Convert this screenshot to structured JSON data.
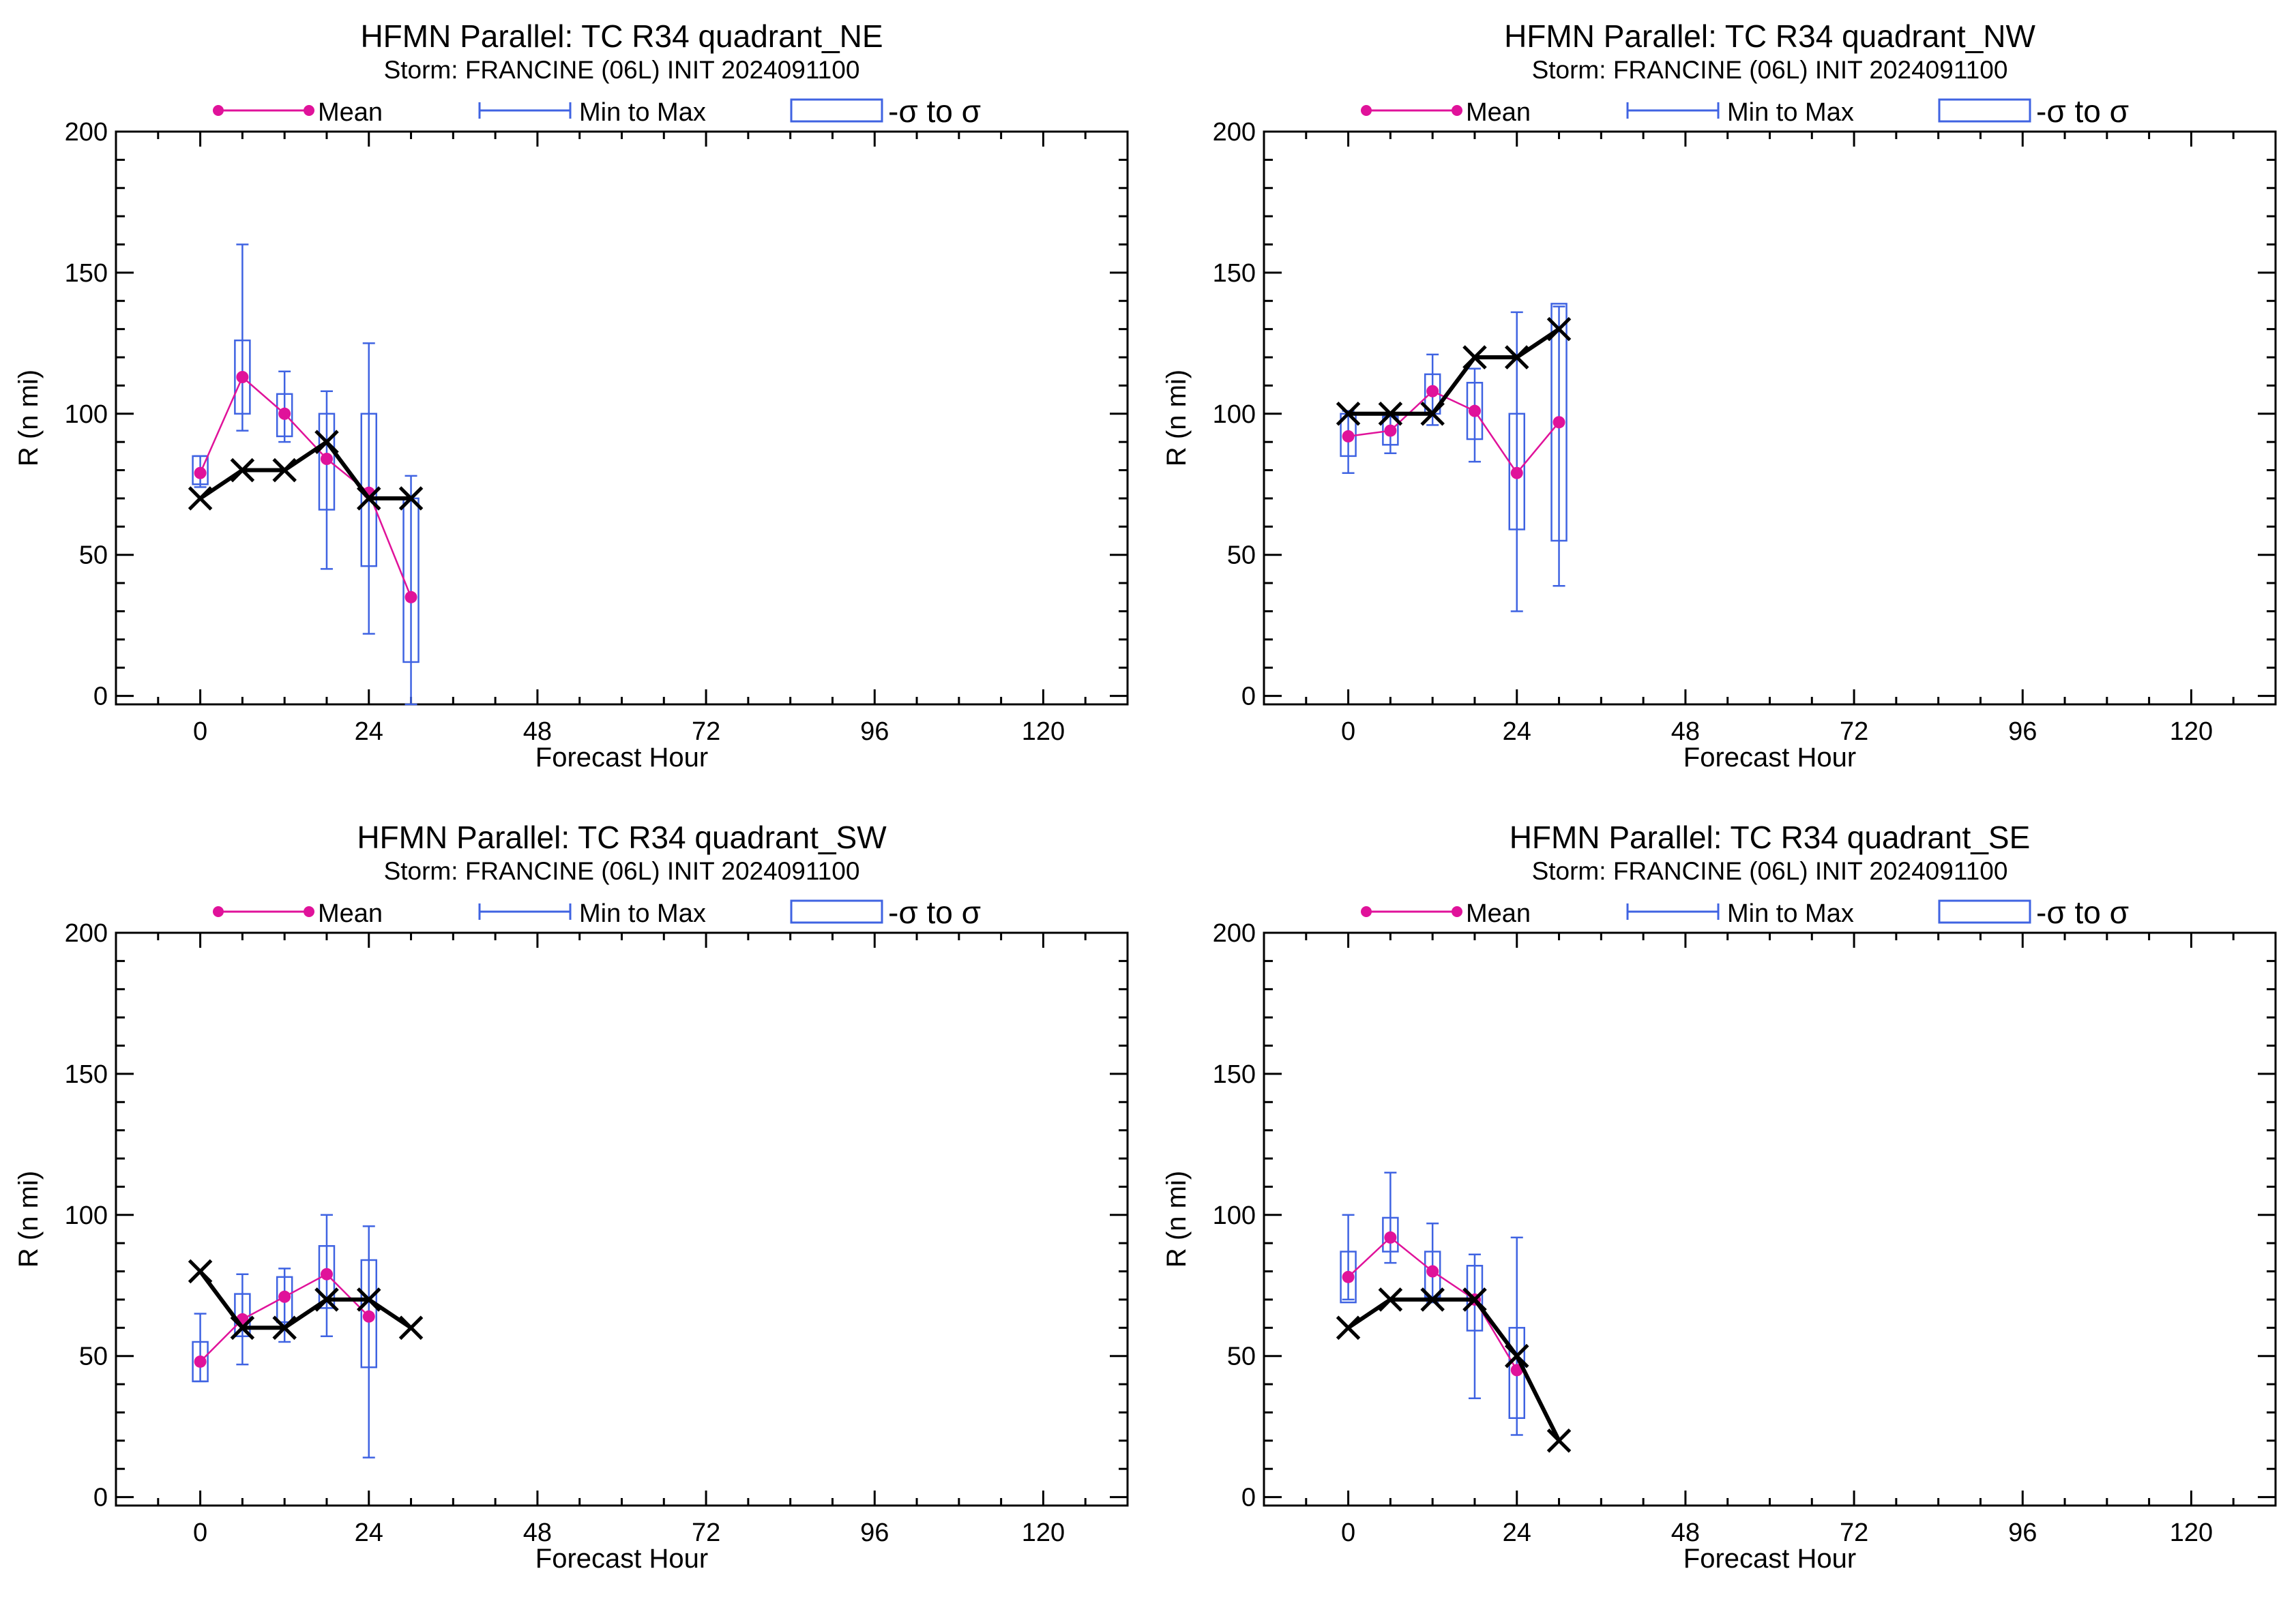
{
  "colors": {
    "mean": "#e0129a",
    "range": "#3f63e2",
    "obs": "#000000",
    "axis": "#000000"
  },
  "legend": {
    "mean_label": "Mean",
    "range_label": "Min to Max",
    "sigma_label": "-σ to σ"
  },
  "chart_data": [
    {
      "type": "line",
      "title": "HFMN Parallel: TC  R34 quadrant_NE",
      "subtitle": "Storm: FRANCINE (06L) INIT 2024091100",
      "xlabel": "Forecast Hour",
      "ylabel": "R (n mi)",
      "xlim": [
        -12,
        132
      ],
      "ylim": [
        -3,
        200
      ],
      "xticks": [
        0,
        24,
        48,
        72,
        96,
        120
      ],
      "yticks": [
        0,
        50,
        100,
        150,
        200
      ],
      "x": [
        0,
        6,
        12,
        18,
        24,
        30
      ],
      "mean": [
        79,
        113,
        100,
        84,
        72,
        35
      ],
      "min": [
        74,
        94,
        90,
        45,
        22,
        -3
      ],
      "max": [
        85,
        160,
        115,
        108,
        125,
        78
      ],
      "sigma_lo": [
        75,
        100,
        92,
        66,
        46,
        12
      ],
      "sigma_hi": [
        85,
        126,
        107,
        100,
        100,
        70
      ],
      "obs_x": [
        0,
        6,
        12,
        18,
        24,
        30
      ],
      "obs": [
        70,
        80,
        80,
        90,
        70,
        70
      ]
    },
    {
      "type": "line",
      "title": "HFMN Parallel: TC  R34 quadrant_NW",
      "subtitle": "Storm: FRANCINE (06L) INIT 2024091100",
      "xlabel": "Forecast Hour",
      "ylabel": "R (n mi)",
      "xlim": [
        -12,
        132
      ],
      "ylim": [
        -3,
        200
      ],
      "xticks": [
        0,
        24,
        48,
        72,
        96,
        120
      ],
      "yticks": [
        0,
        50,
        100,
        150,
        200
      ],
      "x": [
        0,
        6,
        12,
        18,
        24,
        30
      ],
      "mean": [
        92,
        94,
        108,
        101,
        79,
        97
      ],
      "min": [
        79,
        86,
        96,
        83,
        30,
        39
      ],
      "max": [
        101,
        100,
        121,
        116,
        136,
        138
      ],
      "sigma_lo": [
        85,
        89,
        100,
        91,
        59,
        55
      ],
      "sigma_hi": [
        100,
        99,
        114,
        111,
        100,
        139
      ],
      "obs_x": [
        0,
        6,
        12,
        18,
        24,
        30
      ],
      "obs": [
        100,
        100,
        100,
        120,
        120,
        130
      ]
    },
    {
      "type": "line",
      "title": "HFMN Parallel: TC  R34 quadrant_SW",
      "subtitle": "Storm: FRANCINE (06L) INIT 2024091100",
      "xlabel": "Forecast Hour",
      "ylabel": "R (n mi)",
      "xlim": [
        -12,
        132
      ],
      "ylim": [
        -3,
        200
      ],
      "xticks": [
        0,
        24,
        48,
        72,
        96,
        120
      ],
      "yticks": [
        0,
        50,
        100,
        150,
        200
      ],
      "x": [
        0,
        6,
        12,
        18,
        24
      ],
      "mean": [
        48,
        63,
        71,
        79,
        64
      ],
      "min": [
        41,
        47,
        55,
        57,
        14
      ],
      "max": [
        65,
        79,
        81,
        100,
        96
      ],
      "sigma_lo": [
        41,
        57,
        62,
        67,
        46
      ],
      "sigma_hi": [
        55,
        72,
        78,
        89,
        84
      ],
      "obs_x": [
        0,
        6,
        12,
        18,
        24,
        30
      ],
      "obs": [
        80,
        60,
        60,
        70,
        70,
        60
      ]
    },
    {
      "type": "line",
      "title": "HFMN Parallel: TC  R34 quadrant_SE",
      "subtitle": "Storm: FRANCINE (06L) INIT 2024091100",
      "xlabel": "Forecast Hour",
      "ylabel": "R (n mi)",
      "xlim": [
        -12,
        132
      ],
      "ylim": [
        -3,
        200
      ],
      "xticks": [
        0,
        24,
        48,
        72,
        96,
        120
      ],
      "yticks": [
        0,
        50,
        100,
        150,
        200
      ],
      "x": [
        0,
        6,
        12,
        18,
        24
      ],
      "mean": [
        78,
        92,
        80,
        70,
        45
      ],
      "min": [
        70,
        83,
        69,
        35,
        22
      ],
      "max": [
        100,
        115,
        97,
        86,
        92
      ],
      "sigma_lo": [
        69,
        87,
        71,
        59,
        28
      ],
      "sigma_hi": [
        87,
        99,
        87,
        82,
        60
      ],
      "obs_x": [
        0,
        6,
        12,
        18,
        24,
        30
      ],
      "obs": [
        60,
        70,
        70,
        70,
        50,
        20
      ]
    }
  ]
}
